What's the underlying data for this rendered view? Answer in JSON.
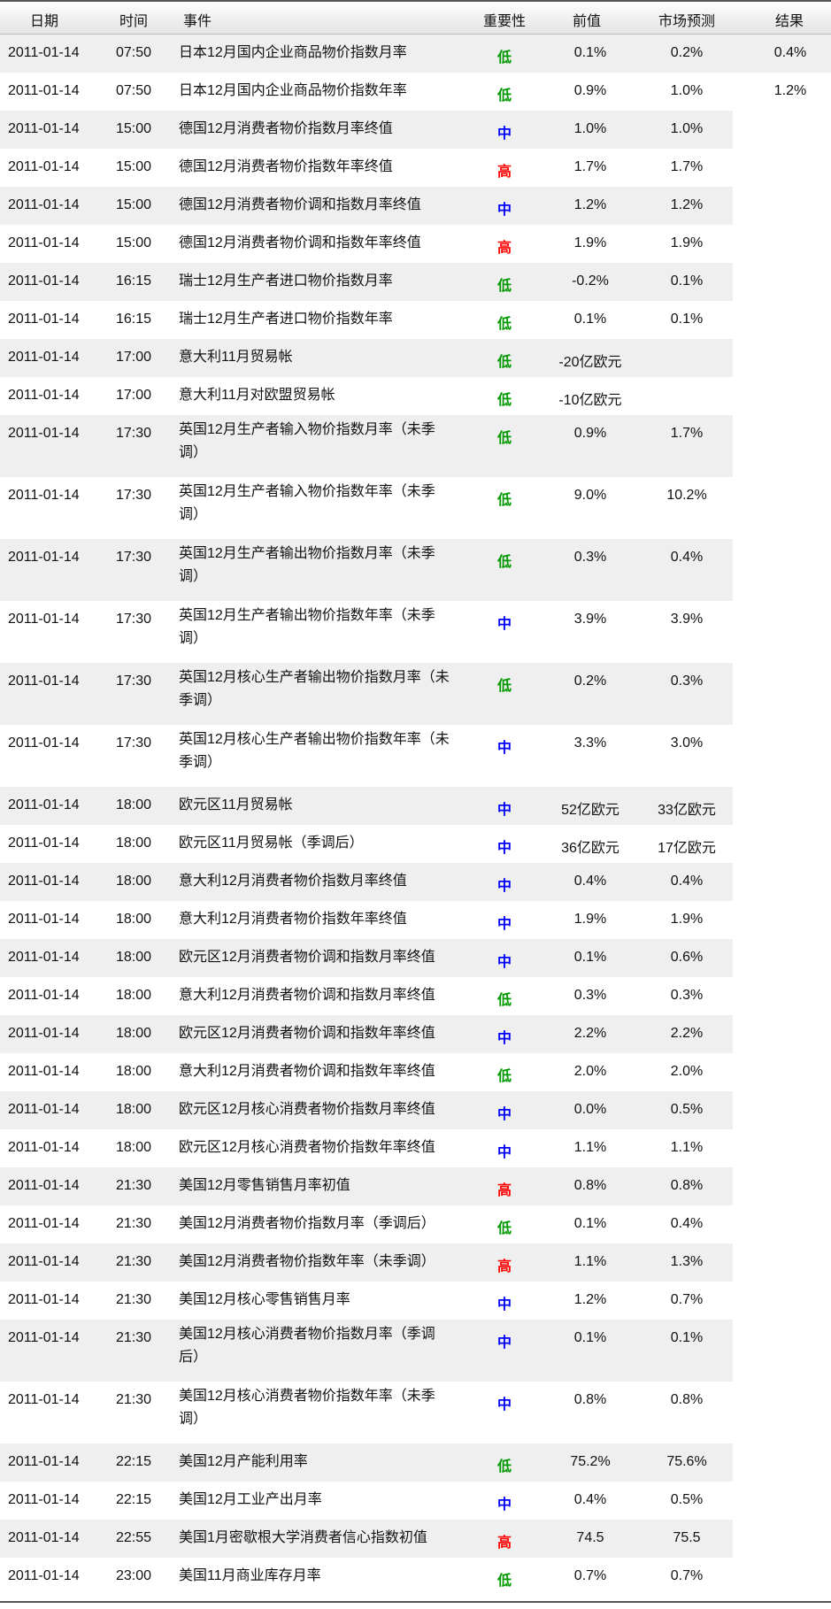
{
  "header": {
    "date": "日期",
    "time": "时间",
    "event": "事件",
    "importance": "重要性",
    "previous": "前值",
    "forecast": "市场预测",
    "result": "结果"
  },
  "importance_colors": {
    "低": "#009900",
    "中": "#0000ff",
    "高": "#ff0000"
  },
  "rows": [
    {
      "date": "2011-01-14",
      "time": "07:50",
      "event": "日本12月国内企业商品物价指数月率",
      "importance": "低",
      "previous": "0.1%",
      "forecast": "0.2%",
      "result": "0.4%"
    },
    {
      "date": "2011-01-14",
      "time": "07:50",
      "event": "日本12月国内企业商品物价指数年率",
      "importance": "低",
      "previous": "0.9%",
      "forecast": "1.0%",
      "result": "1.2%"
    },
    {
      "date": "2011-01-14",
      "time": "15:00",
      "event": "德国12月消费者物价指数月率终值",
      "importance": "中",
      "previous": "1.0%",
      "forecast": "1.0%",
      "result": ""
    },
    {
      "date": "2011-01-14",
      "time": "15:00",
      "event": "德国12月消费者物价指数年率终值",
      "importance": "高",
      "previous": "1.7%",
      "forecast": "1.7%",
      "result": ""
    },
    {
      "date": "2011-01-14",
      "time": "15:00",
      "event": "德国12月消费者物价调和指数月率终值",
      "importance": "中",
      "previous": "1.2%",
      "forecast": "1.2%",
      "result": ""
    },
    {
      "date": "2011-01-14",
      "time": "15:00",
      "event": "德国12月消费者物价调和指数年率终值",
      "importance": "高",
      "previous": "1.9%",
      "forecast": "1.9%",
      "result": ""
    },
    {
      "date": "2011-01-14",
      "time": "16:15",
      "event": "瑞士12月生产者进口物价指数月率",
      "importance": "低",
      "previous": "-0.2%",
      "forecast": "0.1%",
      "result": ""
    },
    {
      "date": "2011-01-14",
      "time": "16:15",
      "event": "瑞士12月生产者进口物价指数年率",
      "importance": "低",
      "previous": "0.1%",
      "forecast": "0.1%",
      "result": ""
    },
    {
      "date": "2011-01-14",
      "time": "17:00",
      "event": "意大利11月贸易帐",
      "importance": "低",
      "previous": "-20亿欧元",
      "forecast": "",
      "result": ""
    },
    {
      "date": "2011-01-14",
      "time": "17:00",
      "event": "意大利11月对欧盟贸易帐",
      "importance": "低",
      "previous": "-10亿欧元",
      "forecast": "",
      "result": ""
    },
    {
      "date": "2011-01-14",
      "time": "17:30",
      "event": "英国12月生产者输入物价指数月率（未季调）",
      "importance": "低",
      "previous": "0.9%",
      "forecast": "1.7%",
      "result": "",
      "double": true
    },
    {
      "date": "2011-01-14",
      "time": "17:30",
      "event": "英国12月生产者输入物价指数年率（未季调）",
      "importance": "低",
      "previous": "9.0%",
      "forecast": "10.2%",
      "result": "",
      "double": true
    },
    {
      "date": "2011-01-14",
      "time": "17:30",
      "event": "英国12月生产者输出物价指数月率（未季调）",
      "importance": "低",
      "previous": "0.3%",
      "forecast": "0.4%",
      "result": "",
      "double": true
    },
    {
      "date": "2011-01-14",
      "time": "17:30",
      "event": "英国12月生产者输出物价指数年率（未季调）",
      "importance": "中",
      "previous": "3.9%",
      "forecast": "3.9%",
      "result": "",
      "double": true
    },
    {
      "date": "2011-01-14",
      "time": "17:30",
      "event": "英国12月核心生产者输出物价指数月率（未季调）",
      "importance": "低",
      "previous": "0.2%",
      "forecast": "0.3%",
      "result": "",
      "double": true
    },
    {
      "date": "2011-01-14",
      "time": "17:30",
      "event": "英国12月核心生产者输出物价指数年率（未季调）",
      "importance": "中",
      "previous": "3.3%",
      "forecast": "3.0%",
      "result": "",
      "double": true
    },
    {
      "date": "2011-01-14",
      "time": "18:00",
      "event": "欧元区11月贸易帐",
      "importance": "中",
      "previous": "52亿欧元",
      "forecast": "33亿欧元",
      "result": ""
    },
    {
      "date": "2011-01-14",
      "time": "18:00",
      "event": "欧元区11月贸易帐（季调后）",
      "importance": "中",
      "previous": "36亿欧元",
      "forecast": "17亿欧元",
      "result": ""
    },
    {
      "date": "2011-01-14",
      "time": "18:00",
      "event": "意大利12月消费者物价指数月率终值",
      "importance": "中",
      "previous": "0.4%",
      "forecast": "0.4%",
      "result": ""
    },
    {
      "date": "2011-01-14",
      "time": "18:00",
      "event": "意大利12月消费者物价指数年率终值",
      "importance": "中",
      "previous": "1.9%",
      "forecast": "1.9%",
      "result": ""
    },
    {
      "date": "2011-01-14",
      "time": "18:00",
      "event": "欧元区12月消费者物价调和指数月率终值",
      "importance": "中",
      "previous": "0.1%",
      "forecast": "0.6%",
      "result": ""
    },
    {
      "date": "2011-01-14",
      "time": "18:00",
      "event": "意大利12月消费者物价调和指数月率终值",
      "importance": "低",
      "previous": "0.3%",
      "forecast": "0.3%",
      "result": ""
    },
    {
      "date": "2011-01-14",
      "time": "18:00",
      "event": "欧元区12月消费者物价调和指数年率终值",
      "importance": "中",
      "previous": "2.2%",
      "forecast": "2.2%",
      "result": ""
    },
    {
      "date": "2011-01-14",
      "time": "18:00",
      "event": "意大利12月消费者物价调和指数年率终值",
      "importance": "低",
      "previous": "2.0%",
      "forecast": "2.0%",
      "result": ""
    },
    {
      "date": "2011-01-14",
      "time": "18:00",
      "event": "欧元区12月核心消费者物价指数月率终值",
      "importance": "中",
      "previous": "0.0%",
      "forecast": "0.5%",
      "result": ""
    },
    {
      "date": "2011-01-14",
      "time": "18:00",
      "event": "欧元区12月核心消费者物价指数年率终值",
      "importance": "中",
      "previous": "1.1%",
      "forecast": "1.1%",
      "result": ""
    },
    {
      "date": "2011-01-14",
      "time": "21:30",
      "event": "美国12月零售销售月率初值",
      "importance": "高",
      "previous": "0.8%",
      "forecast": "0.8%",
      "result": ""
    },
    {
      "date": "2011-01-14",
      "time": "21:30",
      "event": "美国12月消费者物价指数月率（季调后）",
      "importance": "低",
      "previous": "0.1%",
      "forecast": "0.4%",
      "result": ""
    },
    {
      "date": "2011-01-14",
      "time": "21:30",
      "event": "美国12月消费者物价指数年率（未季调）",
      "importance": "高",
      "previous": "1.1%",
      "forecast": "1.3%",
      "result": ""
    },
    {
      "date": "2011-01-14",
      "time": "21:30",
      "event": "美国12月核心零售销售月率",
      "importance": "中",
      "previous": "1.2%",
      "forecast": "0.7%",
      "result": ""
    },
    {
      "date": "2011-01-14",
      "time": "21:30",
      "event": "美国12月核心消费者物价指数月率（季调后）",
      "importance": "中",
      "previous": "0.1%",
      "forecast": "0.1%",
      "result": "",
      "double": true
    },
    {
      "date": "2011-01-14",
      "time": "21:30",
      "event": "美国12月核心消费者物价指数年率（未季调）",
      "importance": "中",
      "previous": "0.8%",
      "forecast": "0.8%",
      "result": "",
      "double": true
    },
    {
      "date": "2011-01-14",
      "time": "22:15",
      "event": "美国12月产能利用率",
      "importance": "低",
      "previous": "75.2%",
      "forecast": "75.6%",
      "result": ""
    },
    {
      "date": "2011-01-14",
      "time": "22:15",
      "event": "美国12月工业产出月率",
      "importance": "中",
      "previous": "0.4%",
      "forecast": "0.5%",
      "result": ""
    },
    {
      "date": "2011-01-14",
      "time": "22:55",
      "event": "美国1月密歇根大学消费者信心指数初值",
      "importance": "高",
      "previous": "74.5",
      "forecast": "75.5",
      "result": ""
    },
    {
      "date": "2011-01-14",
      "time": "23:00",
      "event": "美国11月商业库存月率",
      "importance": "低",
      "previous": "0.7%",
      "forecast": "0.7%",
      "result": ""
    }
  ]
}
